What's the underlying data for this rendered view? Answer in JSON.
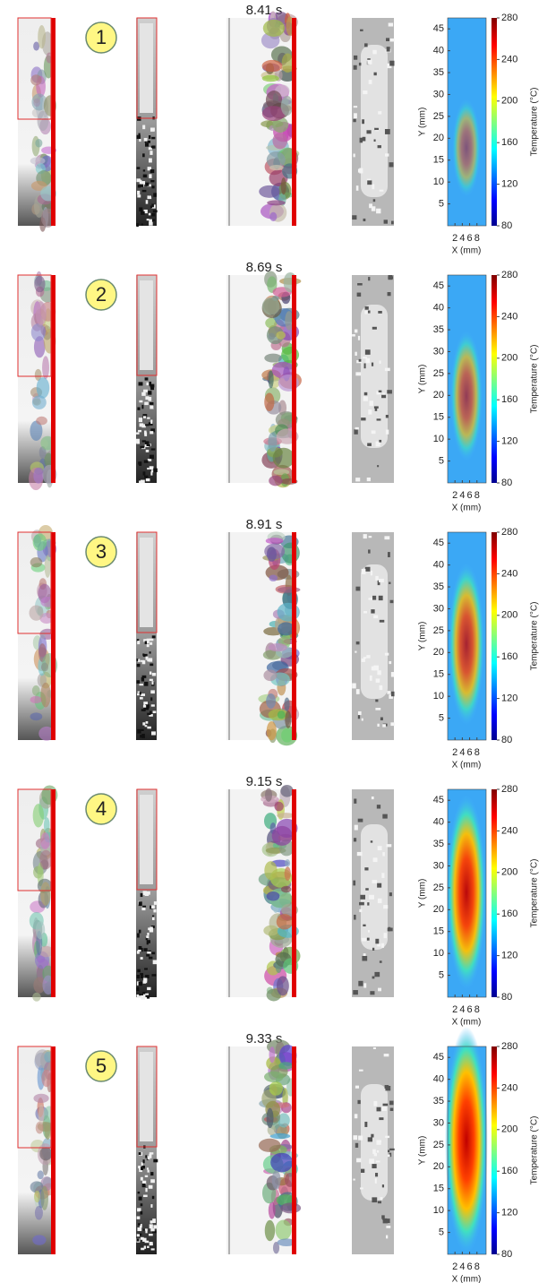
{
  "axes": {
    "y_label": "Y (mm)",
    "x_label": "X (mm)",
    "colorbar_label": "Temperature (°C)",
    "ylim": [
      0,
      47.5
    ],
    "yticks": [
      5,
      10,
      15,
      20,
      25,
      30,
      35,
      40,
      45
    ],
    "xlim": [
      0,
      10.5
    ],
    "xticks": [
      2,
      4,
      6,
      8
    ],
    "colorbar_lim": [
      80,
      280
    ],
    "colorbar_ticks": [
      80,
      120,
      160,
      200,
      240,
      280
    ]
  },
  "panels": [
    {
      "number": "1",
      "time": "8.41 s"
    },
    {
      "number": "2",
      "time": "8.69 s"
    },
    {
      "number": "3",
      "time": "8.91 s"
    },
    {
      "number": "4",
      "time": "9.15 s"
    },
    {
      "number": "5",
      "time": "9.33 s"
    }
  ]
}
